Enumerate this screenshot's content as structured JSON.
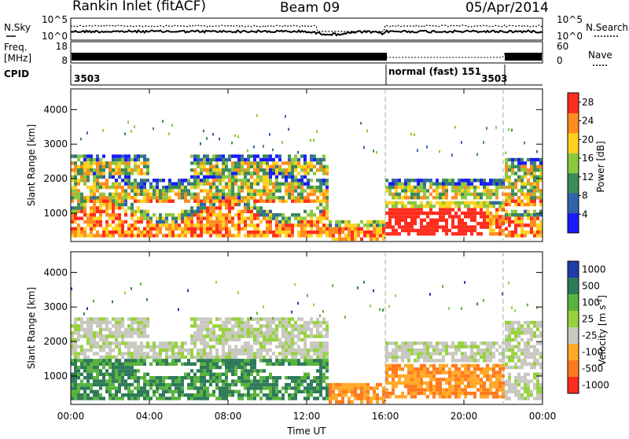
{
  "header": {
    "radar_title": "Rankin Inlet (fitACF)",
    "beam": "Beam 09",
    "date": "05/Apr/2014"
  },
  "strip_labels": {
    "nsky": "N.Sky",
    "nsearch": "N.Search",
    "freq_line1": "Freq.",
    "freq_line2": "[MHz]",
    "nave": "Nave",
    "cpid": "CPID"
  },
  "strip_ticks": {
    "noise_left_top": "10^5",
    "noise_left_bottom": "10^0",
    "noise_right_top": "10^5",
    "noise_right_bottom": "10^0",
    "freq_top": "18",
    "freq_bottom": "8",
    "nave_top": "60",
    "nave_bottom": "0"
  },
  "cpid_segments": [
    {
      "label": "3503",
      "start": "00:00",
      "end": "16:00"
    },
    {
      "label": "normal (fast) 151",
      "start": "16:00",
      "end": "22:00"
    },
    {
      "label": "3503",
      "start": "22:00",
      "end": "00:00"
    }
  ],
  "chart_data": [
    {
      "type": "heatmap",
      "title": "",
      "ylabel": "Slant Range [km]",
      "xlabel": "",
      "x_range": [
        "00:00",
        "24:00"
      ],
      "ylim": [
        180,
        4600
      ],
      "yticks": [
        "1000",
        "2000",
        "3000",
        "4000"
      ],
      "colorbar": {
        "label": "Power [dB]",
        "ticks": [
          "4",
          "8",
          "12",
          "16",
          "20",
          "24",
          "28"
        ],
        "range": [
          0,
          30
        ],
        "colors": [
          "#1a1aff",
          "#2f64a8",
          "#3c8a5a",
          "#8cc83c",
          "#ffd21e",
          "#ff8c1e",
          "#ff2d1e"
        ]
      }
    },
    {
      "type": "heatmap",
      "title": "",
      "ylabel": "Slant Range [km]",
      "xlabel": "Time UT",
      "x_range": [
        "00:00",
        "24:00"
      ],
      "ylim": [
        180,
        4600
      ],
      "yticks": [
        "1000",
        "2000",
        "3000",
        "4000"
      ],
      "xticks": [
        "00:00",
        "04:00",
        "08:00",
        "12:00",
        "16:00",
        "20:00",
        "00:00"
      ],
      "colorbar": {
        "label": "Velocity [m s",
        "label_sup": "-1",
        "label_close": "]",
        "ticks": [
          "1000",
          "500",
          "100",
          "25",
          "-25",
          "-100",
          "-500",
          "-1000"
        ],
        "colors": [
          "#1e3caa",
          "#2f7a5a",
          "#5ab43c",
          "#96d23c",
          "#c8c8c0",
          "#ffaa28",
          "#ff7a1e",
          "#ff2d1e"
        ]
      }
    }
  ]
}
